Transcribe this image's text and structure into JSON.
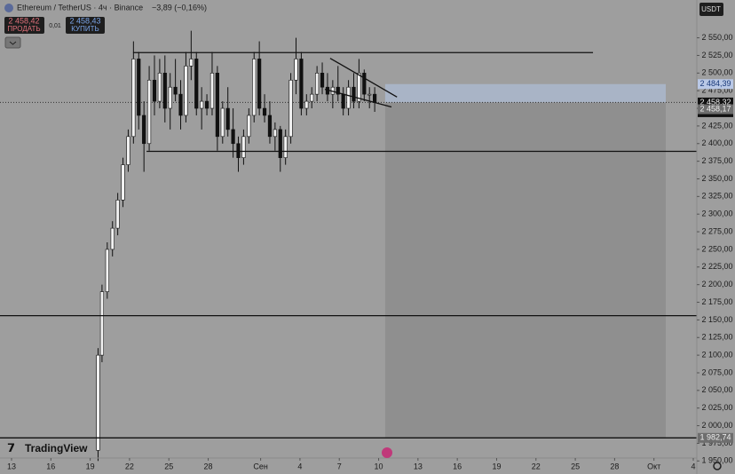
{
  "header": {
    "symbol": "Ethereum / TetherUS · 4ч · Binance",
    "change": "−3,89 (−0,16%)",
    "sell_price": "2 458,42",
    "sell": "ПРОДАТЬ",
    "spread": "0,01",
    "buy_price": "2 458,43",
    "buy": "КУПИТЬ",
    "currency": "USDT",
    "logo": "TradingView"
  },
  "chart_data": {
    "type": "candlestick",
    "x": [
      19.6,
      19.9,
      20.3,
      20.7,
      21.1,
      21.5,
      21.9,
      22.3,
      22.7,
      23.1,
      23.5,
      23.9,
      24.3,
      24.7,
      25.1,
      25.5,
      25.9,
      26.3,
      26.7,
      27.1,
      27.5,
      27.9,
      28.3,
      28.7,
      29.1,
      29.5,
      29.9,
      30.3,
      30.7,
      31.1,
      31.5,
      31.9,
      32.3,
      32.7,
      33.1,
      33.5,
      33.9,
      34.3,
      34.7,
      35.1,
      35.5,
      35.9,
      36.3,
      36.7,
      37.1,
      37.5,
      37.9,
      38.3,
      38.7,
      39.1,
      39.5,
      39.9,
      40.3,
      40.7
    ],
    "open": [
      1965,
      2100,
      2190,
      2250,
      2280,
      2320,
      2370,
      2410,
      2520,
      2440,
      2400,
      2490,
      2460,
      2500,
      2450,
      2480,
      2470,
      2440,
      2510,
      2520,
      2450,
      2460,
      2450,
      2500,
      2410,
      2450,
      2420,
      2400,
      2380,
      2410,
      2440,
      2520,
      2450,
      2440,
      2410,
      2420,
      2380,
      2410,
      2490,
      2520,
      2450,
      2460,
      2470,
      2500,
      2480,
      2470,
      2480,
      2470,
      2450,
      2480,
      2460,
      2500,
      2470,
      2470
    ],
    "high": [
      2110,
      2200,
      2260,
      2290,
      2330,
      2380,
      2420,
      2545,
      2530,
      2460,
      2510,
      2525,
      2520,
      2525,
      2500,
      2520,
      2490,
      2530,
      2560,
      2530,
      2480,
      2470,
      2530,
      2510,
      2460,
      2480,
      2450,
      2410,
      2420,
      2450,
      2530,
      2545,
      2470,
      2460,
      2430,
      2425,
      2420,
      2500,
      2550,
      2530,
      2470,
      2480,
      2510,
      2515,
      2500,
      2490,
      2510,
      2480,
      2490,
      2500,
      2520,
      2505,
      2480,
      2480
    ],
    "low": [
      1950,
      2090,
      2180,
      2240,
      2270,
      2310,
      2360,
      2400,
      2420,
      2360,
      2390,
      2440,
      2450,
      2430,
      2420,
      2460,
      2420,
      2430,
      2490,
      2440,
      2420,
      2440,
      2440,
      2390,
      2400,
      2410,
      2380,
      2360,
      2370,
      2400,
      2430,
      2440,
      2430,
      2400,
      2390,
      2360,
      2370,
      2400,
      2470,
      2440,
      2440,
      2450,
      2460,
      2470,
      2460,
      2450,
      2460,
      2440,
      2440,
      2450,
      2450,
      2460,
      2450,
      2445
    ],
    "close": [
      2100,
      2190,
      2250,
      2280,
      2320,
      2370,
      2410,
      2520,
      2440,
      2400,
      2490,
      2460,
      2500,
      2450,
      2480,
      2470,
      2440,
      2510,
      2520,
      2450,
      2460,
      2450,
      2500,
      2410,
      2450,
      2420,
      2400,
      2380,
      2410,
      2440,
      2520,
      2450,
      2440,
      2410,
      2420,
      2380,
      2410,
      2490,
      2520,
      2450,
      2460,
      2470,
      2500,
      2480,
      2470,
      2480,
      2470,
      2450,
      2480,
      2460,
      2500,
      2470,
      2470,
      2458.32
    ],
    "up_color": "#f2f2f2",
    "down_color": "#111111",
    "xlim": [
      12.12,
      65.27
    ],
    "ylim": [
      1931.5,
      2603.6
    ],
    "xticks": [
      {
        "value": 13,
        "label": "13"
      },
      {
        "value": 16,
        "label": "16"
      },
      {
        "value": 19,
        "label": "19"
      },
      {
        "value": 22,
        "label": "22"
      },
      {
        "value": 25,
        "label": "25"
      },
      {
        "value": 28,
        "label": "28"
      },
      {
        "value": 32,
        "label": "Сен"
      },
      {
        "value": 35,
        "label": "4"
      },
      {
        "value": 38,
        "label": "7"
      },
      {
        "value": 41,
        "label": "10"
      },
      {
        "value": 44,
        "label": "13"
      },
      {
        "value": 47,
        "label": "16"
      },
      {
        "value": 50,
        "label": "19"
      },
      {
        "value": 53,
        "label": "22"
      },
      {
        "value": 56,
        "label": "25"
      },
      {
        "value": 59,
        "label": "28"
      },
      {
        "value": 62,
        "label": "Окт"
      },
      {
        "value": 65,
        "label": "4"
      }
    ],
    "yticks": [
      {
        "value": 2550,
        "label": "2 550,00"
      },
      {
        "value": 2525,
        "label": "2 525,00"
      },
      {
        "value": 2500,
        "label": "2 500,00"
      },
      {
        "value": 2475,
        "label": "2 475,00"
      },
      {
        "value": 2450,
        "label": "2 450,00"
      },
      {
        "value": 2425,
        "label": "2 425,00"
      },
      {
        "value": 2400,
        "label": "2 400,00"
      },
      {
        "value": 2375,
        "label": "2 375,00"
      },
      {
        "value": 2350,
        "label": "2 350,00"
      },
      {
        "value": 2325,
        "label": "2 325,00"
      },
      {
        "value": 2300,
        "label": "2 300,00"
      },
      {
        "value": 2275,
        "label": "2 275,00"
      },
      {
        "value": 2250,
        "label": "2 250,00"
      },
      {
        "value": 2225,
        "label": "2 225,00"
      },
      {
        "value": 2200,
        "label": "2 200,00"
      },
      {
        "value": 2175,
        "label": "2 175,00"
      },
      {
        "value": 2150,
        "label": "2 150,00"
      },
      {
        "value": 2125,
        "label": "2 125,00"
      },
      {
        "value": 2100,
        "label": "2 100,00"
      },
      {
        "value": 2075,
        "label": "2 075,00"
      },
      {
        "value": 2050,
        "label": "2 050,00"
      },
      {
        "value": 2025,
        "label": "2 025,00"
      },
      {
        "value": 2000,
        "label": "2 000,00"
      },
      {
        "value": 1975,
        "label": "1 975,00"
      },
      {
        "value": 1950,
        "label": "1 950,00"
      }
    ],
    "price_labels": [
      {
        "value": 2484.39,
        "label": "2 484,39",
        "color": "#b9c8e6"
      },
      {
        "value": 2458.32,
        "label": "2 458,32",
        "color": "#111111"
      },
      {
        "value": 2458.17,
        "label": "2 458,17",
        "color": "#6e6e6e"
      },
      {
        "value": 1982.74,
        "label": "1 982,74",
        "color": "#6e6e6e"
      }
    ],
    "countdown": "03:34:27",
    "position_x": [
      41.5,
      62.9
    ],
    "lines": [
      {
        "x": [
          22.27,
          57.35
        ],
        "y": [
          2529,
          2529
        ]
      },
      {
        "x": [
          23.3,
          65.27
        ],
        "y": [
          2389,
          2389
        ]
      },
      {
        "x": [
          12.12,
          65.27
        ],
        "y": [
          2156,
          2156
        ]
      },
      {
        "x": [
          12.12,
          65.27
        ],
        "y": [
          1982.74,
          1982.74
        ]
      },
      {
        "x": [
          37.3,
          42.4
        ],
        "y": [
          2521,
          2466
        ]
      },
      {
        "x": [
          36.9,
          41.98
        ],
        "y": [
          2477,
          2452
        ]
      }
    ]
  }
}
